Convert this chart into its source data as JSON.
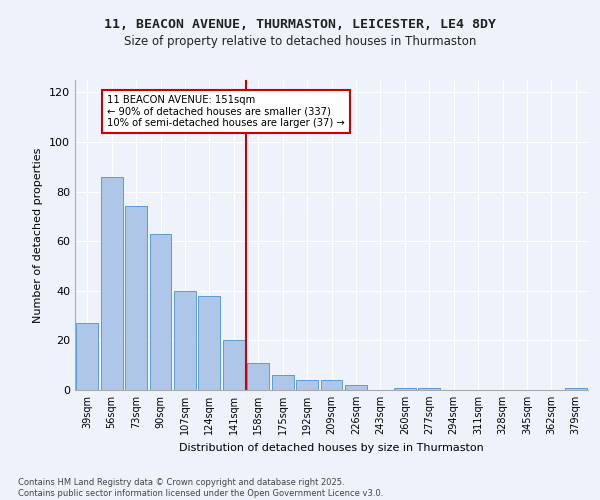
{
  "title1": "11, BEACON AVENUE, THURMASTON, LEICESTER, LE4 8DY",
  "title2": "Size of property relative to detached houses in Thurmaston",
  "xlabel": "Distribution of detached houses by size in Thurmaston",
  "ylabel": "Number of detached properties",
  "categories": [
    "39sqm",
    "56sqm",
    "73sqm",
    "90sqm",
    "107sqm",
    "124sqm",
    "141sqm",
    "158sqm",
    "175sqm",
    "192sqm",
    "209sqm",
    "226sqm",
    "243sqm",
    "260sqm",
    "277sqm",
    "294sqm",
    "311sqm",
    "328sqm",
    "345sqm",
    "362sqm",
    "379sqm"
  ],
  "values": [
    27,
    86,
    74,
    63,
    40,
    38,
    20,
    11,
    6,
    4,
    4,
    2,
    0,
    1,
    1,
    0,
    0,
    0,
    0,
    0,
    1
  ],
  "bar_color": "#aec6e8",
  "bar_edge_color": "#5b9bd5",
  "vline_idx": 7,
  "vline_color": "#cc0000",
  "annotation_text_line1": "11 BEACON AVENUE: 151sqm",
  "annotation_text_line2": "← 90% of detached houses are smaller (337)",
  "annotation_text_line3": "10% of semi-detached houses are larger (37) →",
  "annotation_box_color": "#cc0000",
  "ylim": [
    0,
    125
  ],
  "yticks": [
    0,
    20,
    40,
    60,
    80,
    100,
    120
  ],
  "footer1": "Contains HM Land Registry data © Crown copyright and database right 2025.",
  "footer2": "Contains public sector information licensed under the Open Government Licence v3.0.",
  "bg_color": "#eef3fb",
  "plot_bg_color": "#eef3fb"
}
